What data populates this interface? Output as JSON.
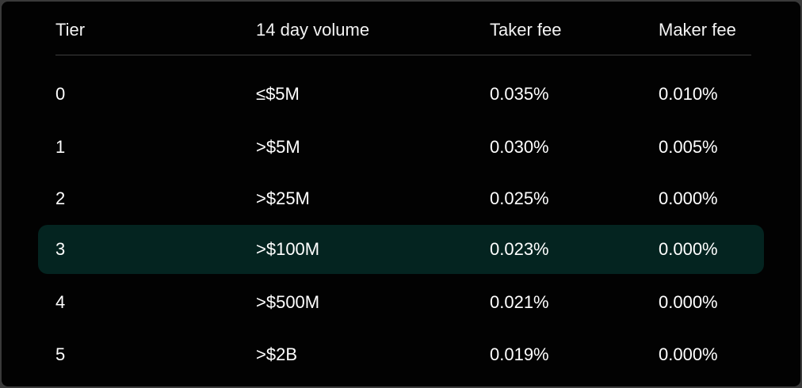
{
  "fee_table": {
    "headers": [
      "Tier",
      "14 day volume",
      "Taker fee",
      "Maker fee"
    ],
    "highlighted_tier": "3",
    "highlight_color": "#042420",
    "rows": [
      {
        "tier": "0",
        "volume": "≤$5M",
        "taker": "0.035%",
        "maker": "0.010%"
      },
      {
        "tier": "1",
        "volume": ">$5M",
        "taker": "0.030%",
        "maker": "0.005%"
      },
      {
        "tier": "2",
        "volume": ">$25M",
        "taker": "0.025%",
        "maker": "0.000%"
      },
      {
        "tier": "3",
        "volume": ">$100M",
        "taker": "0.023%",
        "maker": "0.000%"
      },
      {
        "tier": "4",
        "volume": ">$500M",
        "taker": "0.021%",
        "maker": "0.000%"
      },
      {
        "tier": "5",
        "volume": ">$2B",
        "taker": "0.019%",
        "maker": "0.000%"
      }
    ]
  }
}
